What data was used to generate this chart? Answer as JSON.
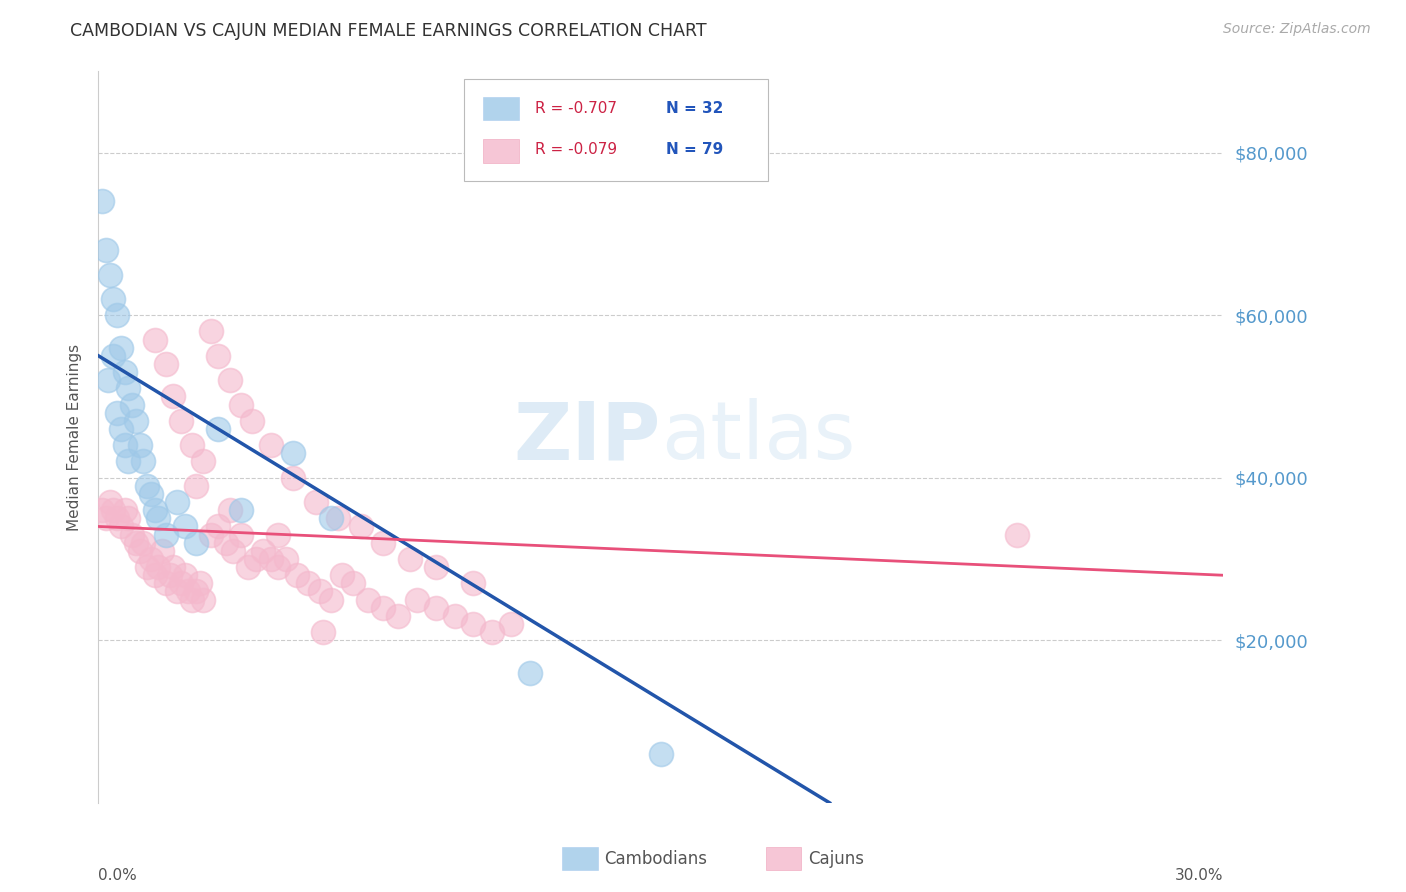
{
  "title": "CAMBODIAN VS CAJUN MEDIAN FEMALE EARNINGS CORRELATION CHART",
  "source": "Source: ZipAtlas.com",
  "ylabel": "Median Female Earnings",
  "watermark_zip": "ZIP",
  "watermark_atlas": "atlas",
  "ylim": [
    0,
    90000
  ],
  "xlim": [
    0.0,
    0.3
  ],
  "yticks": [
    20000,
    40000,
    60000,
    80000
  ],
  "ytick_labels": [
    "$20,000",
    "$40,000",
    "$60,000",
    "$80,000"
  ],
  "legend_r1": "R = -0.707",
  "legend_n1": "N = 32",
  "legend_r2": "R = -0.079",
  "legend_n2": "N = 79",
  "cambodian_color": "#9ec8e8",
  "cajun_color": "#f4b8cc",
  "cambodian_line_color": "#2255aa",
  "cajun_line_color": "#e8507a",
  "title_color": "#333333",
  "source_color": "#aaaaaa",
  "axis_label_color": "#555555",
  "right_tick_color": "#5599cc",
  "background_color": "#ffffff",
  "grid_color": "#cccccc",
  "cam_line_x0": 0.0,
  "cam_line_y0": 55000,
  "cam_line_x1": 0.195,
  "cam_line_y1": 0,
  "caj_line_x0": 0.0,
  "caj_line_y0": 34000,
  "caj_line_x1": 0.3,
  "caj_line_y1": 28000,
  "cambodians_x": [
    0.001,
    0.002,
    0.003,
    0.004,
    0.005,
    0.006,
    0.007,
    0.008,
    0.009,
    0.01,
    0.011,
    0.012,
    0.013,
    0.014,
    0.015,
    0.016,
    0.018,
    0.021,
    0.023,
    0.026,
    0.032,
    0.038,
    0.052,
    0.062,
    0.0025,
    0.004,
    0.005,
    0.006,
    0.007,
    0.008,
    0.115,
    0.15
  ],
  "cambodians_y": [
    74000,
    68000,
    65000,
    62000,
    60000,
    56000,
    53000,
    51000,
    49000,
    47000,
    44000,
    42000,
    39000,
    38000,
    36000,
    35000,
    33000,
    37000,
    34000,
    32000,
    46000,
    36000,
    43000,
    35000,
    52000,
    55000,
    48000,
    46000,
    44000,
    42000,
    16000,
    6000
  ],
  "cajuns_x": [
    0.001,
    0.002,
    0.003,
    0.004,
    0.005,
    0.006,
    0.007,
    0.008,
    0.009,
    0.01,
    0.011,
    0.012,
    0.013,
    0.014,
    0.015,
    0.016,
    0.017,
    0.018,
    0.019,
    0.02,
    0.021,
    0.022,
    0.023,
    0.024,
    0.025,
    0.026,
    0.027,
    0.028,
    0.03,
    0.032,
    0.034,
    0.036,
    0.038,
    0.04,
    0.042,
    0.044,
    0.046,
    0.048,
    0.05,
    0.053,
    0.056,
    0.059,
    0.062,
    0.065,
    0.068,
    0.072,
    0.076,
    0.08,
    0.085,
    0.09,
    0.095,
    0.1,
    0.105,
    0.11,
    0.015,
    0.018,
    0.02,
    0.022,
    0.025,
    0.028,
    0.03,
    0.032,
    0.035,
    0.038,
    0.041,
    0.046,
    0.052,
    0.058,
    0.064,
    0.07,
    0.076,
    0.083,
    0.09,
    0.1,
    0.245,
    0.026,
    0.035,
    0.048,
    0.06
  ],
  "cajuns_y": [
    36000,
    35000,
    37000,
    36000,
    35000,
    34000,
    36000,
    35000,
    33000,
    32000,
    31000,
    32000,
    29000,
    30000,
    28000,
    29000,
    31000,
    27000,
    28000,
    29000,
    26000,
    27000,
    28000,
    26000,
    25000,
    26000,
    27000,
    25000,
    33000,
    34000,
    32000,
    31000,
    33000,
    29000,
    30000,
    31000,
    30000,
    29000,
    30000,
    28000,
    27000,
    26000,
    25000,
    28000,
    27000,
    25000,
    24000,
    23000,
    25000,
    24000,
    23000,
    22000,
    21000,
    22000,
    57000,
    54000,
    50000,
    47000,
    44000,
    42000,
    58000,
    55000,
    52000,
    49000,
    47000,
    44000,
    40000,
    37000,
    35000,
    34000,
    32000,
    30000,
    29000,
    27000,
    33000,
    39000,
    36000,
    33000,
    21000
  ]
}
